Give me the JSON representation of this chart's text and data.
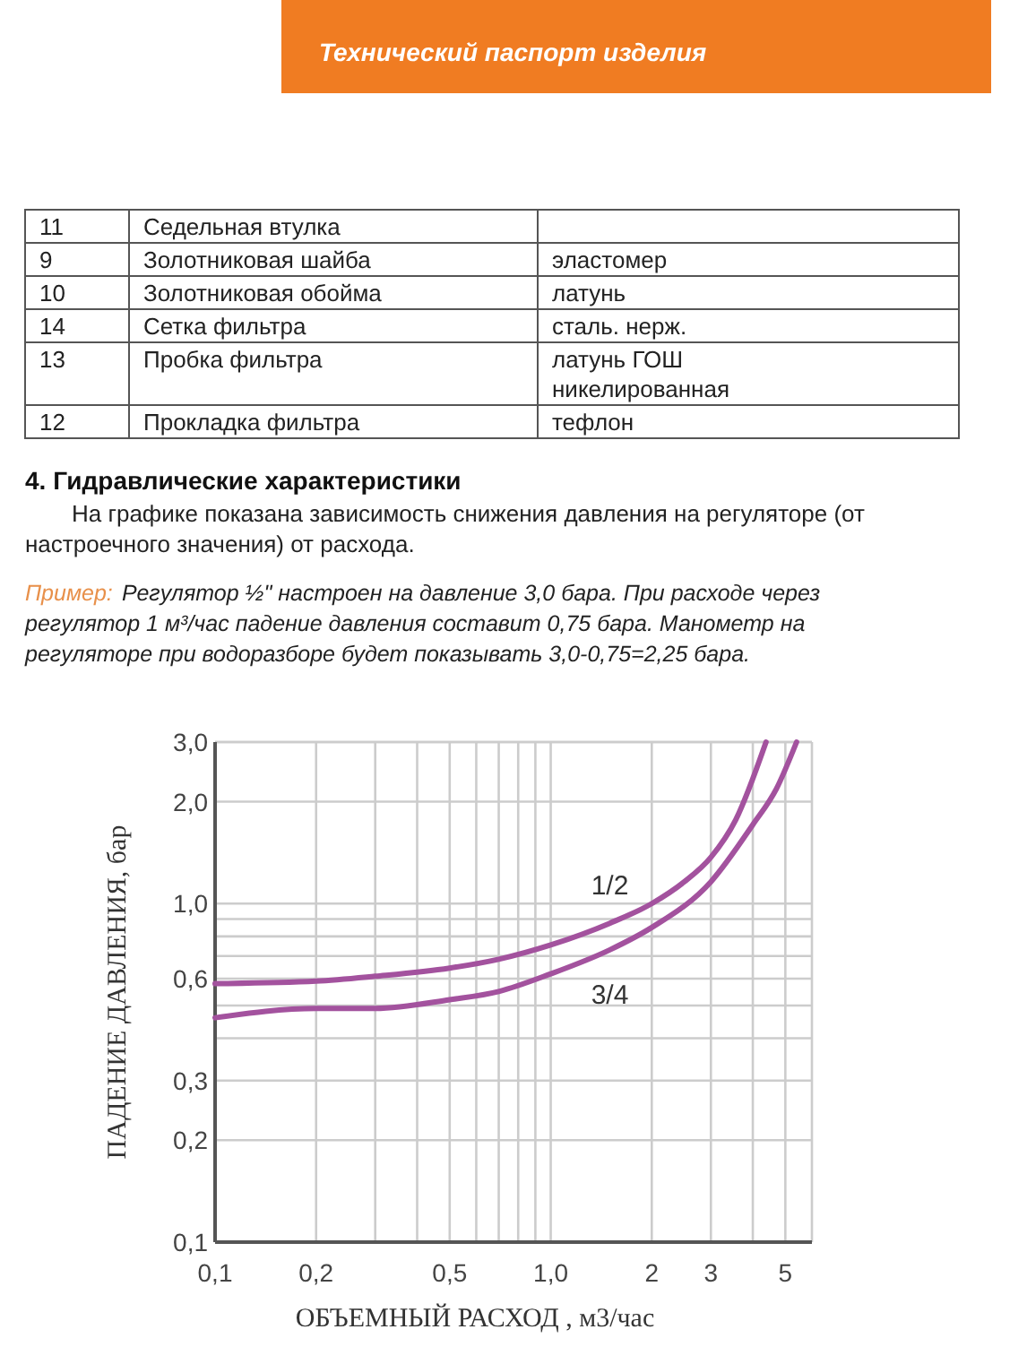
{
  "chart_data": [
    {
      "type": "other",
      "title": "Технический паспорт изделия",
      "annotations": [
        "11",
        "Седельная втулка",
        null,
        "9",
        "Золотниковая шайба",
        "эластомер",
        "10",
        "Золотниковая обойма",
        "латунь",
        "14",
        "Сетка фильтра",
        "сталь. нерж.",
        "13",
        "Пробка фильтра",
        "латунь ГОШ никелированная",
        "12",
        "Прокладка фильтра",
        "тефлон"
      ]
    },
    {
      "type": "line",
      "title": "4. Гидравлические характеристики",
      "subtitle": "На графике показана зависимость снижения давления на регуляторе (от настроечного значения) от расхода.",
      "annotations": [
        "Пример:",
        "Регулятор ½\" настроен на давление 3,0 бара. При расходе через регулятор 1 м³/час падение давления составит 0,75 бара. Манометр на регуляторе при водоразборе будет показывать 3,0-0,75=2,25 бара."
      ],
      "xlabel": "ОБЪЕМНЫЙ РАСХОД , м3/час",
      "ylabel": "ПАДЕНИЕ ДАВЛЕНИЯ, бар",
      "log": "xy",
      "grid": true,
      "xlim": [
        0.1,
        6
      ],
      "ylim": [
        0.1,
        3.0
      ],
      "xticks": [
        {
          "value": 0.1,
          "label": "0,1"
        },
        {
          "value": 0.2,
          "label": "0,2"
        },
        {
          "value": 0.3,
          "label": null
        },
        {
          "value": 0.4,
          "label": null
        },
        {
          "value": 0.5,
          "label": "0,5"
        },
        {
          "value": 0.6,
          "label": null
        },
        {
          "value": 0.7,
          "label": null
        },
        {
          "value": 0.8,
          "label": null
        },
        {
          "value": 0.9,
          "label": null
        },
        {
          "value": 1.0,
          "label": "1,0"
        },
        2,
        3,
        {
          "value": 4,
          "label": null
        },
        5
      ],
      "yticks": [
        {
          "value": 0.1,
          "label": "0,1"
        },
        {
          "value": 0.2,
          "label": "0,2"
        },
        {
          "value": 0.3,
          "label": "0,3"
        },
        {
          "value": 0.4,
          "label": null
        },
        {
          "value": 0.5,
          "label": null
        },
        {
          "value": 0.6,
          "label": "0,6"
        },
        {
          "value": 0.7,
          "label": null
        },
        {
          "value": 0.8,
          "label": null
        },
        {
          "value": 0.9,
          "label": null
        },
        {
          "value": 1.0,
          "label": "1,0"
        },
        {
          "value": 2.0,
          "label": "2,0"
        },
        {
          "value": 3.0,
          "label": "3,0"
        }
      ],
      "series": [
        {
          "name": "1/2",
          "color": "#a3529e",
          "x": [
            0.1,
            0.2,
            0.3,
            0.5,
            0.7,
            1.0,
            1.5,
            2,
            2.5,
            3,
            3.56,
            4.38
          ],
          "values": [
            0.58,
            0.59,
            0.61,
            0.645,
            0.685,
            0.755,
            0.875,
            1.0,
            1.16,
            1.37,
            1.77,
            3.0
          ]
        },
        {
          "name": "3/4",
          "color": "#a3529e",
          "x": [
            0.1,
            0.2,
            0.3,
            0.5,
            0.7,
            1.0,
            1.5,
            2,
            3,
            4,
            4.7,
            5.4
          ],
          "values": [
            0.46,
            0.49,
            0.49,
            0.52,
            0.55,
            0.62,
            0.73,
            0.85,
            1.16,
            1.71,
            2.18,
            3.0
          ]
        }
      ]
    }
  ]
}
